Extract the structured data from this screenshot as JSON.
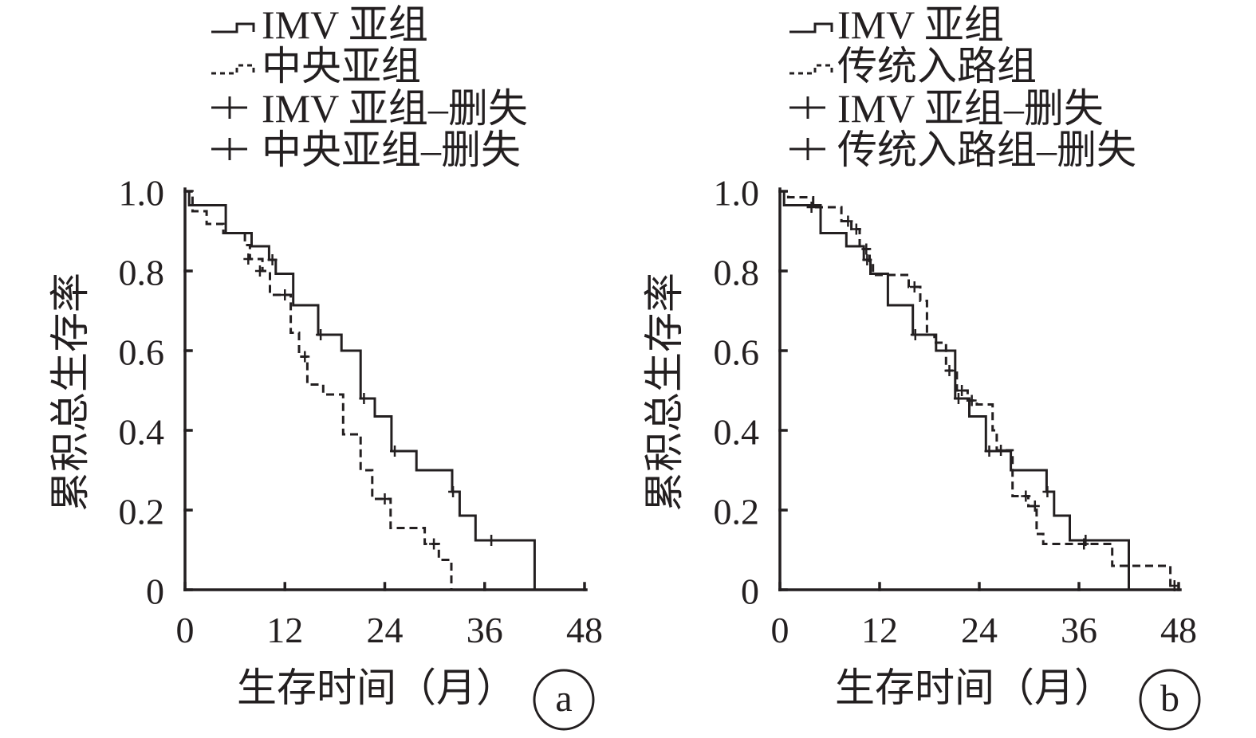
{
  "chart_data": [
    {
      "type": "line",
      "panel_label": "a",
      "xlabel": "生存时间（月）",
      "ylabel": "累积总生存率",
      "xlim": [
        0,
        48
      ],
      "ylim": [
        0,
        1
      ],
      "xticks": [
        0,
        12,
        24,
        36,
        48
      ],
      "yticks": [
        0,
        0.2,
        0.4,
        0.6,
        0.8,
        1.0
      ],
      "ytick_labels": [
        "0",
        "0.2",
        "0.4",
        "0.6",
        "0.8",
        "1.0"
      ],
      "grid": false,
      "legend_position": "top",
      "series": [
        {
          "name": "IMV 亚组",
          "censor_label": "IMV 亚组–删失",
          "line_style": "solid",
          "color": "#231f20",
          "steps": [
            [
              0,
              1.0
            ],
            [
              0.5,
              0.965
            ],
            [
              4.9,
              0.895
            ],
            [
              8.0,
              0.862
            ],
            [
              10.1,
              0.828
            ],
            [
              10.9,
              0.793
            ],
            [
              13.0,
              0.714
            ],
            [
              16.0,
              0.64
            ],
            [
              18.8,
              0.6
            ],
            [
              21.1,
              0.48
            ],
            [
              22.8,
              0.435
            ],
            [
              24.8,
              0.348
            ],
            [
              27.8,
              0.3
            ],
            [
              32.1,
              0.246
            ],
            [
              33.0,
              0.186
            ],
            [
              34.9,
              0.124
            ],
            [
              42.0,
              0
            ]
          ],
          "censored": [
            [
              10.5,
              0.828
            ],
            [
              16.3,
              0.64
            ],
            [
              21.5,
              0.48
            ],
            [
              25.2,
              0.348
            ],
            [
              32.2,
              0.246
            ],
            [
              36.8,
              0.124
            ]
          ]
        },
        {
          "name": "中央亚组",
          "censor_label": "中央亚组–删失",
          "line_style": "dashed",
          "color": "#231f20",
          "steps": [
            [
              0,
              1.0
            ],
            [
              0.9,
              0.95
            ],
            [
              2.6,
              0.918
            ],
            [
              4.6,
              0.895
            ],
            [
              7.2,
              0.865
            ],
            [
              7.8,
              0.83
            ],
            [
              9.3,
              0.8
            ],
            [
              10.2,
              0.74
            ],
            [
              12.7,
              0.645
            ],
            [
              13.7,
              0.585
            ],
            [
              14.7,
              0.515
            ],
            [
              16.6,
              0.49
            ],
            [
              19.0,
              0.39
            ],
            [
              21.1,
              0.3
            ],
            [
              22.5,
              0.228
            ],
            [
              24.7,
              0.155
            ],
            [
              28.8,
              0.115
            ],
            [
              30.5,
              0.075
            ],
            [
              32.0,
              0
            ]
          ],
          "censored": [
            [
              7.6,
              0.83
            ],
            [
              9.0,
              0.8
            ],
            [
              12.0,
              0.74
            ],
            [
              14.4,
              0.585
            ],
            [
              24.0,
              0.228
            ],
            [
              29.9,
              0.115
            ]
          ]
        }
      ]
    },
    {
      "type": "line",
      "panel_label": "b",
      "xlabel": "生存时间（月）",
      "ylabel": "累积总生存率",
      "xlim": [
        0,
        48
      ],
      "ylim": [
        0,
        1
      ],
      "xticks": [
        0,
        12,
        24,
        36,
        48
      ],
      "yticks": [
        0,
        0.2,
        0.4,
        0.6,
        0.8,
        1.0
      ],
      "ytick_labels": [
        "0",
        "0.2",
        "0.4",
        "0.6",
        "0.8",
        "1.0"
      ],
      "grid": false,
      "legend_position": "top",
      "series": [
        {
          "name": "IMV 亚组",
          "censor_label": "IMV 亚组–删失",
          "line_style": "solid",
          "color": "#231f20",
          "steps": [
            [
              0,
              1.0
            ],
            [
              0.5,
              0.965
            ],
            [
              4.9,
              0.895
            ],
            [
              8.0,
              0.862
            ],
            [
              10.1,
              0.828
            ],
            [
              10.9,
              0.793
            ],
            [
              13.0,
              0.714
            ],
            [
              16.0,
              0.64
            ],
            [
              18.8,
              0.6
            ],
            [
              21.1,
              0.48
            ],
            [
              22.8,
              0.435
            ],
            [
              24.8,
              0.348
            ],
            [
              27.8,
              0.3
            ],
            [
              32.1,
              0.246
            ],
            [
              33.0,
              0.186
            ],
            [
              34.9,
              0.124
            ],
            [
              42.0,
              0
            ]
          ],
          "censored": [
            [
              10.5,
              0.828
            ],
            [
              16.3,
              0.64
            ],
            [
              21.5,
              0.48
            ],
            [
              25.2,
              0.348
            ],
            [
              32.2,
              0.246
            ],
            [
              36.8,
              0.124
            ]
          ]
        },
        {
          "name": "传统入路组",
          "censor_label": "传统入路组–删失",
          "line_style": "dashed",
          "color": "#231f20",
          "steps": [
            [
              0,
              1.0
            ],
            [
              1.0,
              0.985
            ],
            [
              4.0,
              0.96
            ],
            [
              7.4,
              0.925
            ],
            [
              8.6,
              0.905
            ],
            [
              9.6,
              0.855
            ],
            [
              10.8,
              0.825
            ],
            [
              11.2,
              0.79
            ],
            [
              15.5,
              0.76
            ],
            [
              16.9,
              0.725
            ],
            [
              17.7,
              0.64
            ],
            [
              18.6,
              0.62
            ],
            [
              20.0,
              0.55
            ],
            [
              21.3,
              0.5
            ],
            [
              22.6,
              0.475
            ],
            [
              23.7,
              0.465
            ],
            [
              25.6,
              0.4
            ],
            [
              26.1,
              0.35
            ],
            [
              28.0,
              0.235
            ],
            [
              29.9,
              0.21
            ],
            [
              30.9,
              0.14
            ],
            [
              31.7,
              0.115
            ],
            [
              40.0,
              0.06
            ],
            [
              47.0,
              0
            ]
          ],
          "censored": [
            [
              3.8,
              0.96
            ],
            [
              8.2,
              0.925
            ],
            [
              9.2,
              0.905
            ],
            [
              10.4,
              0.855
            ],
            [
              16.2,
              0.76
            ],
            [
              20.4,
              0.55
            ],
            [
              21.9,
              0.5
            ],
            [
              23.1,
              0.475
            ],
            [
              26.6,
              0.35
            ],
            [
              29.6,
              0.235
            ],
            [
              30.7,
              0.21
            ],
            [
              36.6,
              0.115
            ],
            [
              47.5,
              0.01
            ]
          ]
        }
      ]
    }
  ]
}
